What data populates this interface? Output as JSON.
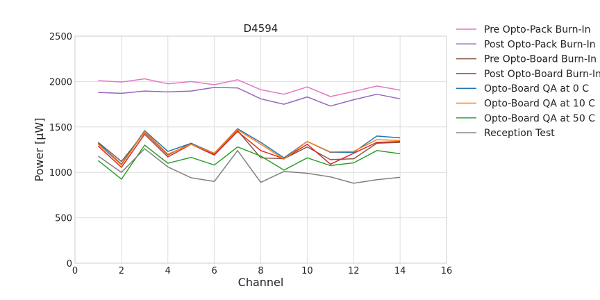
{
  "chart_data": {
    "type": "line",
    "title": "D4594",
    "xlabel": "Channel",
    "ylabel": "Power [μW]",
    "xlim": [
      0,
      16
    ],
    "ylim": [
      0,
      2500
    ],
    "xticks": [
      0,
      2,
      4,
      6,
      8,
      10,
      12,
      14,
      16
    ],
    "yticks": [
      0,
      500,
      1000,
      1500,
      2000,
      2500
    ],
    "grid": true,
    "legend_position": "outside-right",
    "x": [
      1,
      2,
      3,
      4,
      5,
      6,
      7,
      8,
      9,
      10,
      11,
      12,
      13,
      14
    ],
    "series": [
      {
        "name": "Pre Opto-Pack Burn-In",
        "color": "#e377c2",
        "values": [
          2010,
          1995,
          2030,
          1975,
          2000,
          1965,
          2020,
          1910,
          1860,
          1940,
          1835,
          1890,
          1950,
          1905
        ]
      },
      {
        "name": "Post Opto-Pack Burn-In",
        "color": "#9467bd",
        "values": [
          1880,
          1870,
          1895,
          1885,
          1895,
          1935,
          1930,
          1810,
          1750,
          1830,
          1730,
          1800,
          1860,
          1810
        ]
      },
      {
        "name": "Pre Opto-Board Burn-In",
        "color": "#8c564b",
        "values": [
          1330,
          1120,
          1440,
          1190,
          1320,
          1200,
          1460,
          1160,
          1150,
          1280,
          1140,
          1150,
          1320,
          1330
        ]
      },
      {
        "name": "Post Opto-Board Burn-In",
        "color": "#d62728",
        "values": [
          1290,
          1055,
          1420,
          1170,
          1310,
          1190,
          1450,
          1240,
          1150,
          1310,
          1090,
          1210,
          1330,
          1340
        ]
      },
      {
        "name": "Opto-Board QA at 0 C",
        "color": "#1f77b4",
        "values": [
          1320,
          1090,
          1460,
          1230,
          1320,
          1210,
          1480,
          1330,
          1160,
          1340,
          1220,
          1220,
          1400,
          1380
        ]
      },
      {
        "name": "Opto-Board QA at 10 C",
        "color": "#ff7f0e",
        "values": [
          1310,
          1080,
          1450,
          1200,
          1310,
          1210,
          1470,
          1310,
          1145,
          1340,
          1225,
          1230,
          1360,
          1350
        ]
      },
      {
        "name": "Opto-Board QA at 50 C",
        "color": "#2ca02c",
        "values": [
          1130,
          925,
          1300,
          1100,
          1165,
          1080,
          1280,
          1180,
          1025,
          1160,
          1075,
          1105,
          1240,
          1205
        ]
      },
      {
        "name": "Reception Test",
        "color": "#7f7f7f",
        "values": [
          1180,
          1000,
          1260,
          1060,
          940,
          900,
          1240,
          890,
          1010,
          990,
          950,
          880,
          920,
          945
        ]
      }
    ]
  }
}
